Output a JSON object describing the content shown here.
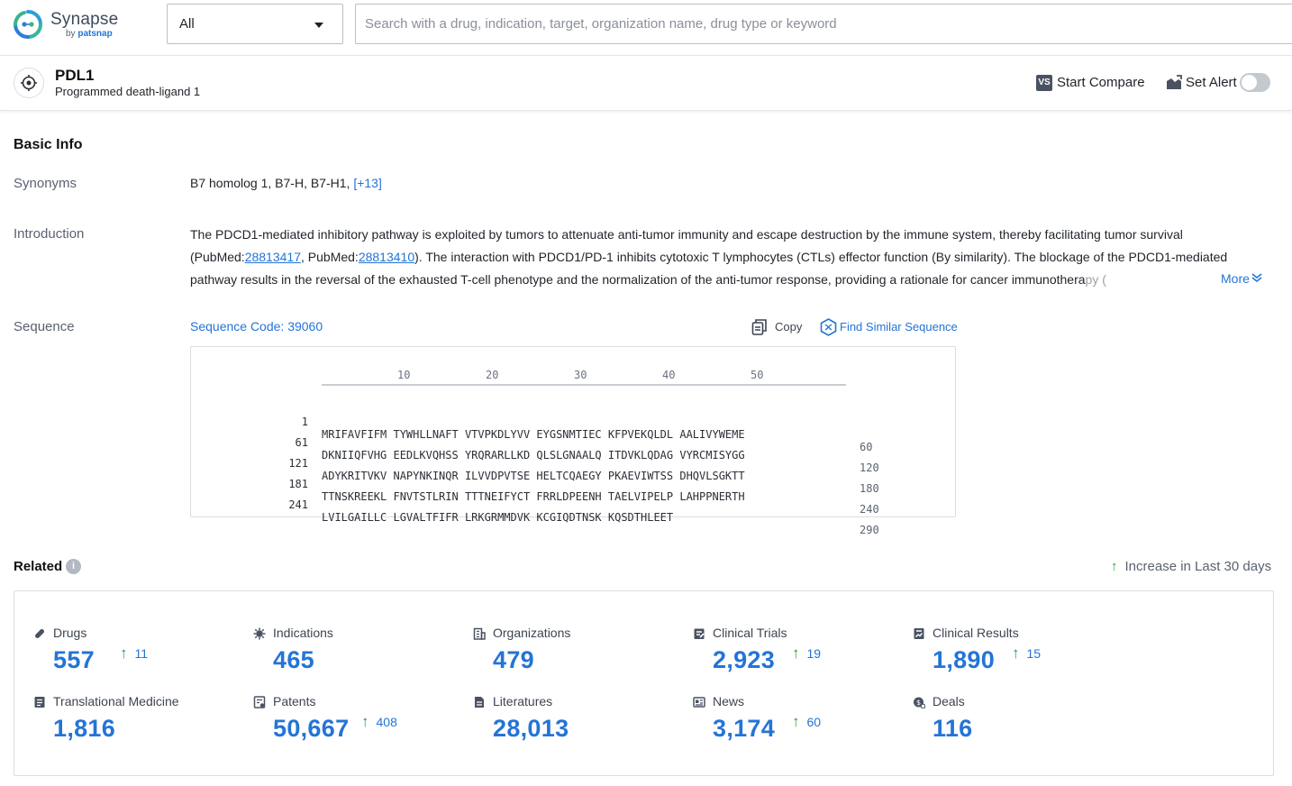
{
  "brand": {
    "name": "Synapse",
    "sub_prefix": "by",
    "sub_brand": "patsnap"
  },
  "search": {
    "scope_value": "All",
    "placeholder": "Search with a drug, indication, target, organization name, drug type or keyword"
  },
  "target": {
    "symbol": "PDL1",
    "full_name": "Programmed death-ligand 1",
    "compare_label": "Start Compare",
    "compare_icon_text": "VS",
    "alert_label": "Set Alert",
    "alert_enabled": false
  },
  "basic_info": {
    "title": "Basic Info",
    "synonyms_label": "Synonyms",
    "synonyms_text": "B7 homolog 1, B7-H, B7-H1, ",
    "synonyms_more": "[+13]",
    "introduction_label": "Introduction",
    "intro_part1": "The PDCD1-mediated inhibitory pathway is exploited by tumors to attenuate anti-tumor immunity and escape destruction by the immune system, thereby facilitating tumor survival (PubMed:",
    "intro_ref1": "28813417",
    "intro_part2": ", PubMed:",
    "intro_ref2": "28813410",
    "intro_part3": "). The interaction with PDCD1/PD-1 inhibits cytotoxic T lymphocytes (CTLs) effector function (By similarity). The blockage of the PDCD1-mediated pathway results in the reversal of the exhausted T-cell phenotype and the normalization of the anti-tumor response, providing a rationale for cancer immunothera",
    "intro_fade": "py (",
    "more_label": "More",
    "sequence_label": "Sequence",
    "sequence_code": "Sequence Code: 39060",
    "copy_label": "Copy",
    "find_similar_label": "Find Similar Sequence",
    "ruler": [
      "10",
      "20",
      "30",
      "40",
      "50"
    ],
    "sequence_rows": [
      {
        "start": "1",
        "residues": "MRIFAVFIFM TYWHLLNAFT VTVPKDLYVV EYGSNMTIEC KFPVEKQLDL AALIVYWEME",
        "end": "60"
      },
      {
        "start": "61",
        "residues": "DKNIIQFVHG EEDLKVQHSS YRQRARLLKD QLSLGNAALQ ITDVKLQDAG VYRCMISYGG",
        "end": "120"
      },
      {
        "start": "121",
        "residues": "ADYKRITVKV NAPYNKINQR ILVVDPVTSE HELTCQAEGY PKAEVIWTSS DHQVLSGKTT",
        "end": "180"
      },
      {
        "start": "181",
        "residues": "TTNSKREEKL FNVTSTLRIN TTTNEIFYCT FRRLDPEENH TAELVIPELP LAHPPNERTH",
        "end": "240"
      },
      {
        "start": "241",
        "residues": "LVILGAILLC LGVALTFIFR LRKGRMMDVK KCGIQDTNSK KQSDTHLEET",
        "end": "290"
      }
    ]
  },
  "related": {
    "title": "Related",
    "info_icon": "i",
    "increase_note": "Increase in Last 30 days",
    "stats": [
      {
        "label": "Drugs",
        "value": "557",
        "increase": "11",
        "icon": "pill-icon"
      },
      {
        "label": "Indications",
        "value": "465",
        "increase": "",
        "icon": "virus-icon"
      },
      {
        "label": "Organizations",
        "value": "479",
        "increase": "",
        "icon": "building-icon"
      },
      {
        "label": "Clinical Trials",
        "value": "2,923",
        "increase": "19",
        "icon": "clipboard-icon"
      },
      {
        "label": "Clinical Results",
        "value": "1,890",
        "increase": "15",
        "icon": "chart-doc-icon"
      },
      {
        "label": "Translational Medicine",
        "value": "1,816",
        "increase": "",
        "icon": "doc-icon"
      },
      {
        "label": "Patents",
        "value": "50,667",
        "increase": "408",
        "icon": "patent-icon"
      },
      {
        "label": "Literatures",
        "value": "28,013",
        "increase": "",
        "icon": "literature-icon"
      },
      {
        "label": "News",
        "value": "3,174",
        "increase": "60",
        "icon": "news-icon"
      },
      {
        "label": "Deals",
        "value": "116",
        "increase": "",
        "icon": "deal-icon"
      }
    ]
  },
  "colors": {
    "accent": "#2474d6",
    "increase": "#2e9b3e",
    "text": "#1f2329",
    "muted": "#5a6170"
  }
}
